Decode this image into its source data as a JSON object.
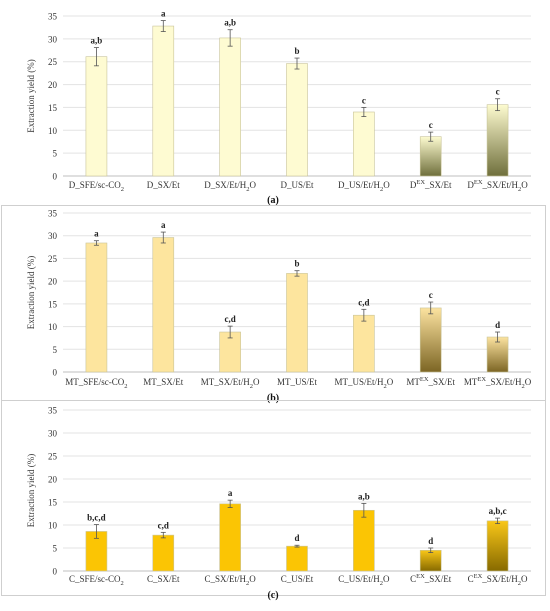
{
  "chart_data": [
    {
      "type": "bar",
      "panel_label": "(a)",
      "ylabel": "Extraction yield (%)",
      "ylim": [
        0,
        35
      ],
      "yticks": [
        0,
        5,
        10,
        15,
        20,
        25,
        30,
        35
      ],
      "grid": true,
      "categories": [
        {
          "base": "D_SFE/sc-CO",
          "sub": "2"
        },
        {
          "base": "D_SX/Et"
        },
        {
          "base": "D_SX/Et/H",
          "sub": "2",
          "post": "O"
        },
        {
          "base": "D_US/Et"
        },
        {
          "base": "D_US/Et/H",
          "sub": "2",
          "post": "O"
        },
        {
          "base": "D",
          "sup": "EX",
          "post": "_SX/Et"
        },
        {
          "base": "D",
          "sup": "EX",
          "post": "_SX/Et/H",
          "sub2": "2",
          "post2": "O"
        }
      ],
      "values": [
        26.1,
        32.8,
        30.2,
        24.6,
        14.0,
        8.6,
        15.6
      ],
      "errors": [
        2.0,
        1.2,
        1.8,
        1.2,
        1.0,
        1.0,
        1.3
      ],
      "letters": [
        "a,b",
        "a",
        "a,b",
        "b",
        "c",
        "c",
        "c"
      ],
      "colors": [
        "#fefbd2",
        "#fefbd2",
        "#fefbd2",
        "#fefbd2",
        "#fefbd2",
        "gradient",
        "gradient"
      ],
      "fill_color": "#fefbd2",
      "gradient_top": "#fdfbd0",
      "gradient_bottom": "#6f6f3c"
    },
    {
      "type": "bar",
      "panel_label": "(b)",
      "ylabel": "Extraction yield (%)",
      "ylim": [
        0,
        35
      ],
      "yticks": [
        0,
        5,
        10,
        15,
        20,
        25,
        30,
        35
      ],
      "grid": true,
      "categories": [
        {
          "base": "MT_SFE/sc-CO",
          "sub": "2"
        },
        {
          "base": "MT_SX/Et"
        },
        {
          "base": "MT_SX/Et/H",
          "sub": "2",
          "post": "O"
        },
        {
          "base": "MT_US/Et"
        },
        {
          "base": "MT_US/Et/H",
          "sub": "2",
          "post": "O"
        },
        {
          "base": "MT",
          "sup": "EX",
          "post": "_SX/Et"
        },
        {
          "base": "MT",
          "sup": "EX",
          "post": "_SX/Et/H",
          "sub2": "2",
          "post2": "O"
        }
      ],
      "values": [
        28.4,
        29.6,
        8.8,
        21.7,
        12.5,
        14.1,
        7.7
      ],
      "errors": [
        0.5,
        1.2,
        1.3,
        0.6,
        1.3,
        1.3,
        1.1
      ],
      "letters": [
        "a",
        "a",
        "c,d",
        "b",
        "c,d",
        "c",
        "d"
      ],
      "colors": [
        "#fde59e",
        "#fde59e",
        "#fde59e",
        "#fde59e",
        "#fde59e",
        "gradient",
        "gradient"
      ],
      "fill_color": "#fde59e",
      "gradient_top": "#fce3a0",
      "gradient_bottom": "#7c6524"
    },
    {
      "type": "bar",
      "panel_label": "(c)",
      "ylabel": "Extraction yield (%)",
      "ylim": [
        0,
        35
      ],
      "yticks": [
        0,
        5,
        10,
        15,
        20,
        25,
        30,
        35
      ],
      "grid": true,
      "categories": [
        {
          "base": "C_SFE/sc-CO",
          "sub": "2"
        },
        {
          "base": "C_SX/Et"
        },
        {
          "base": "C_SX/Et/H",
          "sub": "2",
          "post": "O"
        },
        {
          "base": "C_US/Et"
        },
        {
          "base": "C_US/Et/H",
          "sub": "2",
          "post": "O"
        },
        {
          "base": "C",
          "sup": "EX",
          "post": "_SX/Et"
        },
        {
          "base": "C",
          "sup": "EX",
          "post": "_SX/Et/H",
          "sub2": "2",
          "post2": "O"
        }
      ],
      "values": [
        8.6,
        7.8,
        14.6,
        5.4,
        13.2,
        4.5,
        10.9
      ],
      "errors": [
        1.5,
        0.6,
        0.8,
        0.2,
        1.5,
        0.5,
        0.6
      ],
      "letters": [
        "b,c,d",
        "c,d",
        "a",
        "d",
        "a,b",
        "d",
        "a,b,c"
      ],
      "colors": [
        "#fbc504",
        "#fbc504",
        "#fbc504",
        "#fbc504",
        "#fbc504",
        "gradient",
        "gradient"
      ],
      "fill_color": "#fbc504",
      "gradient_top": "#f9c718",
      "gradient_bottom": "#876a00"
    }
  ]
}
